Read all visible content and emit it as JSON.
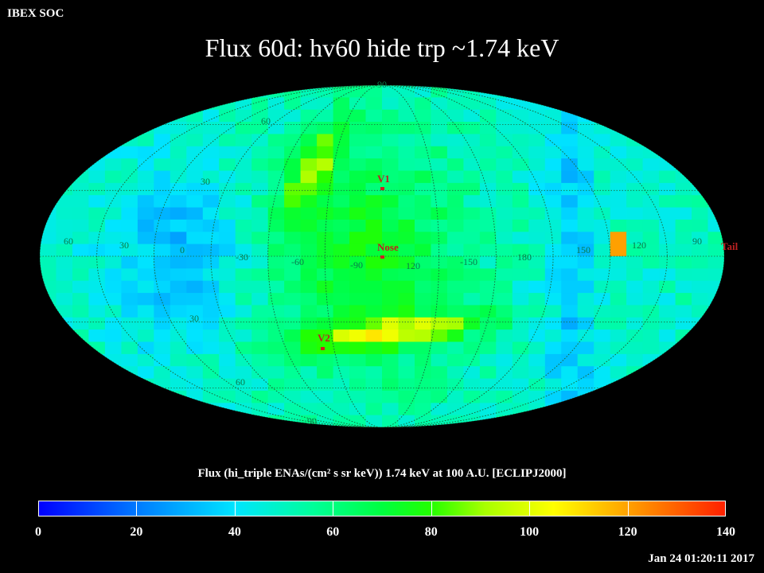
{
  "header": {
    "org": "IBEX SOC",
    "title": "Flux   60d: hv60 hide trp ~1.74 keV"
  },
  "map": {
    "projection": "Mollweide",
    "markers": [
      {
        "id": "v1",
        "label": "V1"
      },
      {
        "id": "nose",
        "label": "Nose"
      },
      {
        "id": "v2",
        "label": "V2"
      },
      {
        "id": "tail",
        "label": "Tail"
      }
    ],
    "longitude_labels": [
      "60",
      "30",
      "0",
      "-30",
      "-60",
      "-90",
      "120",
      "-150",
      "180",
      "150",
      "120",
      "90"
    ],
    "latitude_labels": [
      "90",
      "60",
      "30",
      "30",
      "60",
      "90"
    ],
    "colors": {
      "grid": "#1a6a3a",
      "marker": "#cc2222",
      "label": "#0a7a4a"
    }
  },
  "colorbar": {
    "title": "Flux (hi_triple ENAs/(cm² s sr keV))  1.74 keV at 100 A.U. [ECLIPJ2000]",
    "ticks": [
      "0",
      "20",
      "40",
      "60",
      "80",
      "100",
      "120",
      "140"
    ],
    "range": [
      0,
      140
    ]
  },
  "footer": {
    "timestamp": "Jan 24 01:20:11 2017"
  }
}
